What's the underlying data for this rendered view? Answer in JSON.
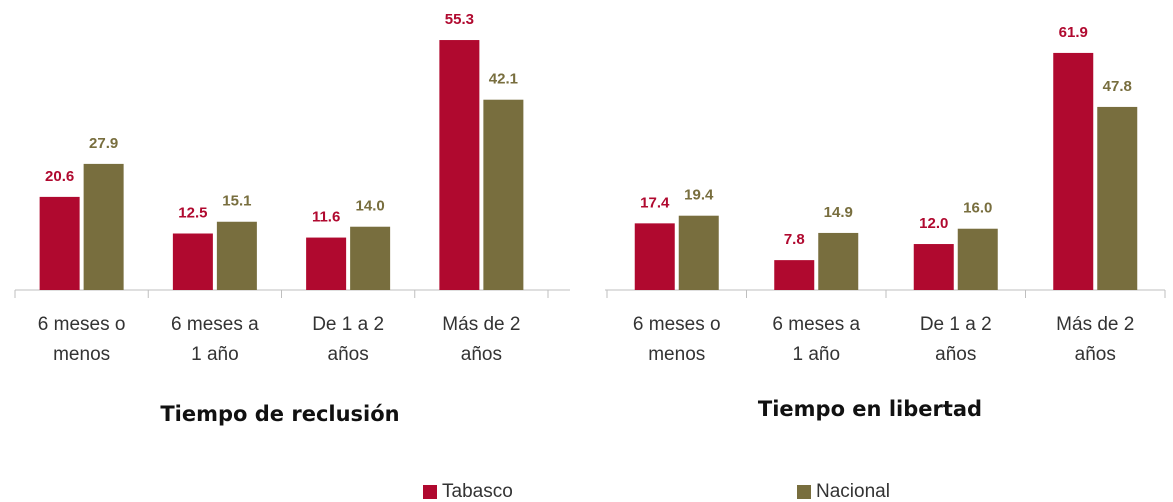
{
  "chart_data": [
    {
      "type": "bar",
      "title": "Tiempo de reclusión",
      "categories": [
        [
          "6 meses o",
          "menos"
        ],
        [
          "6 meses a",
          "1 año"
        ],
        [
          "De 1 a 2",
          "años"
        ],
        [
          "Más de 2",
          "años"
        ]
      ],
      "series": [
        {
          "name": "Tabasco",
          "color": "#b0092f",
          "values": [
            20.6,
            12.5,
            11.6,
            55.3
          ],
          "value_labels": [
            "20.6",
            "12.5",
            "11.6",
            "55.3"
          ]
        },
        {
          "name": "Nacional",
          "color": "#786e3e",
          "values": [
            27.9,
            15.1,
            14.0,
            42.1
          ],
          "value_labels": [
            "27.9",
            "15.1",
            "14.0",
            "42.1"
          ]
        }
      ]
    },
    {
      "type": "bar",
      "title": "Tiempo en libertad",
      "categories": [
        [
          "6 meses o",
          "menos"
        ],
        [
          "6 meses a",
          "1 año"
        ],
        [
          "De 1 a 2",
          "años"
        ],
        [
          "Más de 2",
          "años"
        ]
      ],
      "series": [
        {
          "color": "#b0092f",
          "values": [
            17.4,
            7.8,
            12.0,
            61.9
          ],
          "value_labels": [
            "17.4",
            "7.8",
            "12.0",
            "61.9"
          ]
        },
        {
          "color": "#786e3e",
          "values": [
            19.4,
            14.9,
            16.0,
            47.8
          ],
          "value_labels": [
            "19.4",
            "14.9",
            "16.0",
            "47.8"
          ]
        }
      ]
    }
  ]
}
